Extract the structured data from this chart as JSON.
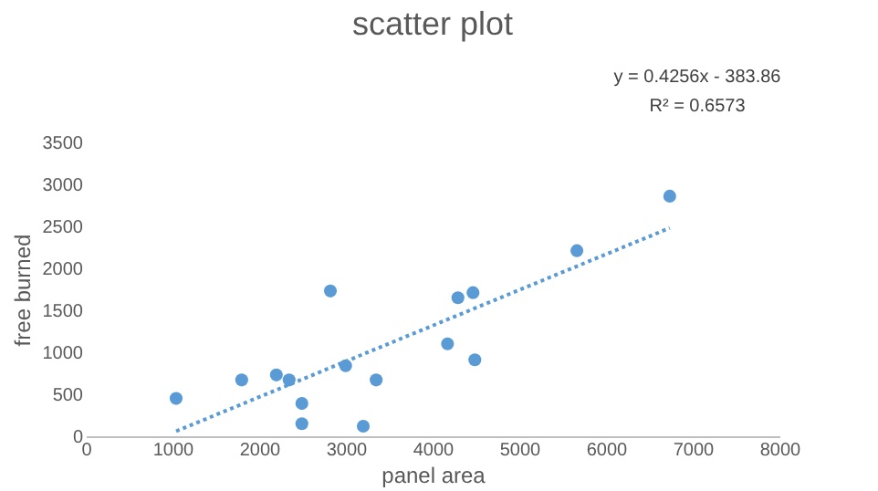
{
  "chart_data": {
    "type": "scatter",
    "title": "scatter plot",
    "xlabel": "panel area",
    "ylabel": "free burned",
    "annotations": [
      "y = 0.4256x - 383.86",
      "R² = 0.6573"
    ],
    "series": [
      {
        "color": "#5b9bd5",
        "marker": "circle",
        "x": [
          1042,
          1798,
          2198,
          2345,
          2492,
          2492,
          2821,
          2997,
          3200,
          3349,
          4172,
          4292,
          4466,
          4487,
          5664,
          6735
        ],
        "values": [
          450,
          670,
          730,
          670,
          390,
          150,
          1730,
          840,
          120,
          670,
          1100,
          1650,
          1710,
          910,
          2210,
          2860
        ]
      },
      {
        "type": "line",
        "color": "#5b9bd5",
        "line_style": "dotted",
        "marker": "none",
        "x": [
          1042,
          6735
        ],
        "values": [
          60,
          2480
        ]
      }
    ],
    "xlim": [
      0,
      8000
    ],
    "xticks": [
      0,
      1000,
      2000,
      3000,
      4000,
      5000,
      6000,
      7000,
      8000
    ],
    "ylim": [
      0,
      3500
    ],
    "yticks": [
      0,
      500,
      1000,
      1500,
      2000,
      2500,
      3000,
      3500
    ],
    "grid": false
  }
}
